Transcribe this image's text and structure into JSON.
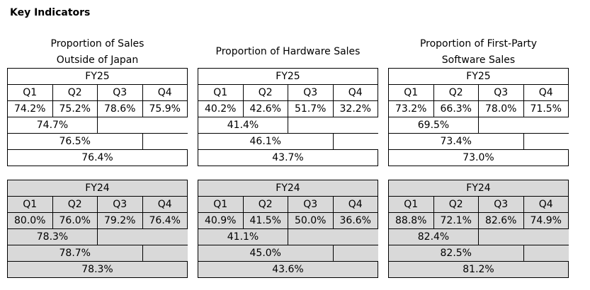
{
  "page_title": "Key Indicators",
  "panels": [
    {
      "title_lines": [
        "Proportion of Sales",
        "Outside of Japan"
      ],
      "fy25": {
        "label": "FY25",
        "quarters": [
          "Q1",
          "Q2",
          "Q3",
          "Q4"
        ],
        "values": [
          "74.2%",
          "75.2%",
          "78.6%",
          "75.9%"
        ],
        "h1": "74.7%",
        "q1_q3": "76.5%",
        "full_year": "76.4%"
      },
      "fy24": {
        "label": "FY24",
        "quarters": [
          "Q1",
          "Q2",
          "Q3",
          "Q4"
        ],
        "values": [
          "80.0%",
          "76.0%",
          "79.2%",
          "76.4%"
        ],
        "h1": "78.3%",
        "q1_q3": "78.7%",
        "full_year": "78.3%"
      }
    },
    {
      "title_lines": [
        "Proportion of Hardware Sales"
      ],
      "fy25": {
        "label": "FY25",
        "quarters": [
          "Q1",
          "Q2",
          "Q3",
          "Q4"
        ],
        "values": [
          "40.2%",
          "42.6%",
          "51.7%",
          "32.2%"
        ],
        "h1": "41.4%",
        "q1_q3": "46.1%",
        "full_year": "43.7%"
      },
      "fy24": {
        "label": "FY24",
        "quarters": [
          "Q1",
          "Q2",
          "Q3",
          "Q4"
        ],
        "values": [
          "40.9%",
          "41.5%",
          "50.0%",
          "36.6%"
        ],
        "h1": "41.1%",
        "q1_q3": "45.0%",
        "full_year": "43.6%"
      }
    },
    {
      "title_lines": [
        "Proportion of First-Party",
        "Software Sales"
      ],
      "fy25": {
        "label": "FY25",
        "quarters": [
          "Q1",
          "Q2",
          "Q3",
          "Q4"
        ],
        "values": [
          "73.2%",
          "66.3%",
          "78.0%",
          "71.5%"
        ],
        "h1": "69.5%",
        "q1_q3": "73.4%",
        "full_year": "73.0%"
      },
      "fy24": {
        "label": "FY24",
        "quarters": [
          "Q1",
          "Q2",
          "Q3",
          "Q4"
        ],
        "values": [
          "88.8%",
          "72.1%",
          "82.6%",
          "74.9%"
        ],
        "h1": "82.4%",
        "q1_q3": "82.5%",
        "full_year": "81.2%"
      }
    }
  ]
}
